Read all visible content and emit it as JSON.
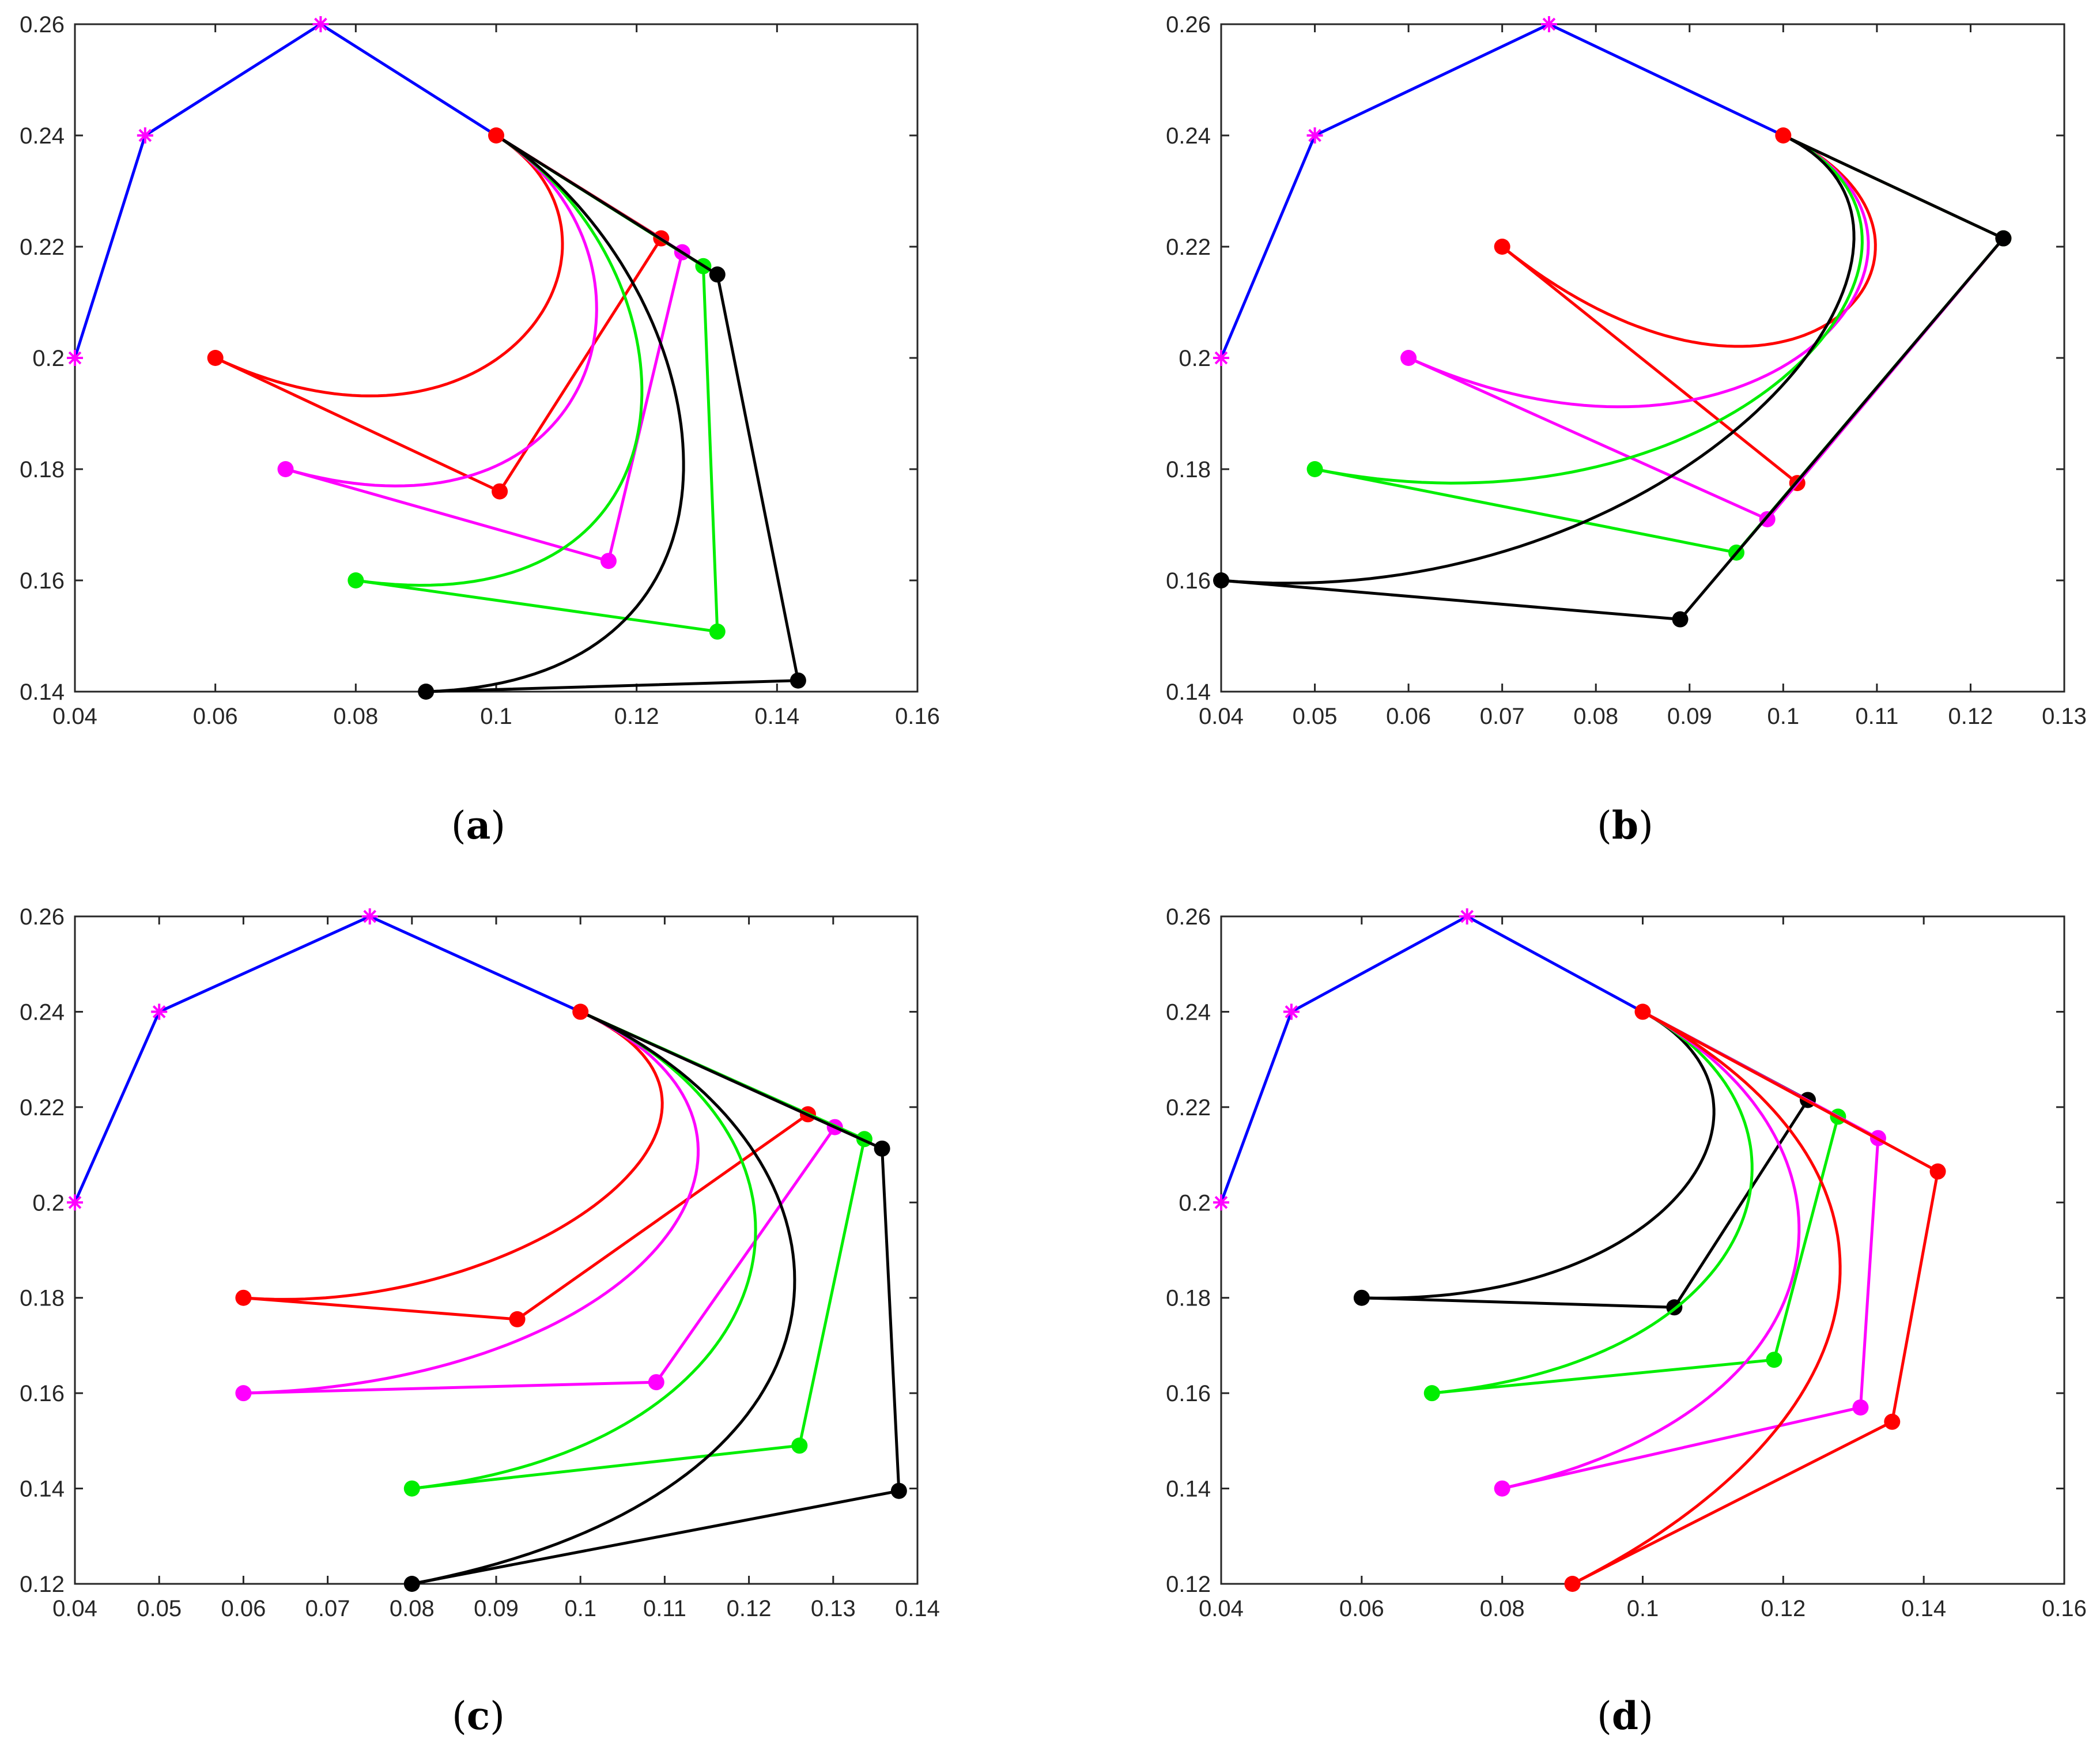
{
  "figure": {
    "type": "multi-panel line/scatter figure (Bezier curves with control polygons)"
  },
  "colors": {
    "blue": "#0000ff",
    "magenta": "#ff00ff",
    "red": "#ff0000",
    "green": "#00ee00",
    "black": "#000000",
    "axis": "#262626"
  },
  "chart_data": [
    {
      "type": "line",
      "label": "(a)",
      "title": "",
      "xlabel": "",
      "ylabel": "",
      "xlim": [
        0.04,
        0.16
      ],
      "ylim": [
        0.14,
        0.26
      ],
      "xticks": [
        0.04,
        0.06,
        0.08,
        0.1,
        0.12,
        0.14,
        0.16
      ],
      "xtick_labels": [
        "0.04",
        "0.06",
        "0.08",
        "0.1",
        "0.12",
        "0.14",
        "0.16"
      ],
      "yticks": [
        0.14,
        0.16,
        0.18,
        0.2,
        0.22,
        0.24,
        0.26
      ],
      "ytick_labels": [
        "0.14",
        "0.16",
        "0.18",
        "0.2",
        "0.22",
        "0.24",
        "0.26"
      ],
      "fixed_polygon": {
        "color": "blue",
        "marker": "asterisk",
        "points": [
          [
            0.04,
            0.2
          ],
          [
            0.05,
            0.24
          ],
          [
            0.075,
            0.26
          ],
          [
            0.1,
            0.24
          ]
        ]
      },
      "series": [
        {
          "name": "red",
          "color": "red",
          "control_points": [
            [
              0.1,
              0.24
            ],
            [
              0.1235,
              0.2215
            ],
            [
              0.1005,
              0.176
            ],
            [
              0.06,
              0.2
            ]
          ]
        },
        {
          "name": "magenta",
          "color": "magenta",
          "control_points": [
            [
              0.1,
              0.24
            ],
            [
              0.1265,
              0.219
            ],
            [
              0.116,
              0.1635
            ],
            [
              0.07,
              0.18
            ]
          ]
        },
        {
          "name": "green",
          "color": "green",
          "control_points": [
            [
              0.1,
              0.24
            ],
            [
              0.1295,
              0.2165
            ],
            [
              0.1315,
              0.1508
            ],
            [
              0.08,
              0.16
            ]
          ]
        },
        {
          "name": "black",
          "color": "black",
          "control_points": [
            [
              0.1,
              0.24
            ],
            [
              0.1315,
              0.215
            ],
            [
              0.143,
              0.142
            ],
            [
              0.09,
              0.14
            ]
          ]
        }
      ]
    },
    {
      "type": "line",
      "label": "(b)",
      "title": "",
      "xlabel": "",
      "ylabel": "",
      "xlim": [
        0.04,
        0.13
      ],
      "ylim": [
        0.14,
        0.26
      ],
      "xticks": [
        0.04,
        0.05,
        0.06,
        0.07,
        0.08,
        0.09,
        0.1,
        0.11,
        0.12,
        0.13
      ],
      "xtick_labels": [
        "0.04",
        "0.05",
        "0.06",
        "0.07",
        "0.08",
        "0.09",
        "0.1",
        "0.11",
        "0.12",
        "0.13"
      ],
      "yticks": [
        0.14,
        0.16,
        0.18,
        0.2,
        0.22,
        0.24,
        0.26
      ],
      "ytick_labels": [
        "0.14",
        "0.16",
        "0.18",
        "0.2",
        "0.22",
        "0.24",
        "0.26"
      ],
      "fixed_polygon": {
        "color": "blue",
        "marker": "asterisk",
        "points": [
          [
            0.04,
            0.2
          ],
          [
            0.05,
            0.24
          ],
          [
            0.075,
            0.26
          ],
          [
            0.1,
            0.24
          ]
        ]
      },
      "series": [
        {
          "name": "red",
          "color": "red",
          "control_points": [
            [
              0.1,
              0.24
            ],
            [
              0.1235,
              0.2215
            ],
            [
              0.1015,
              0.1775
            ],
            [
              0.07,
              0.22
            ]
          ]
        },
        {
          "name": "magenta",
          "color": "magenta",
          "control_points": [
            [
              0.1,
              0.24
            ],
            [
              0.1235,
              0.2215
            ],
            [
              0.0983,
              0.171
            ],
            [
              0.06,
              0.2
            ]
          ]
        },
        {
          "name": "green",
          "color": "green",
          "control_points": [
            [
              0.1,
              0.24
            ],
            [
              0.1235,
              0.2215
            ],
            [
              0.095,
              0.165
            ],
            [
              0.05,
              0.18
            ]
          ]
        },
        {
          "name": "black",
          "color": "black",
          "control_points": [
            [
              0.1,
              0.24
            ],
            [
              0.1235,
              0.2215
            ],
            [
              0.089,
              0.153
            ],
            [
              0.04,
              0.16
            ]
          ]
        }
      ]
    },
    {
      "type": "line",
      "label": "(c)",
      "title": "",
      "xlabel": "",
      "ylabel": "",
      "xlim": [
        0.04,
        0.14
      ],
      "ylim": [
        0.12,
        0.26
      ],
      "xticks": [
        0.04,
        0.05,
        0.06,
        0.07,
        0.08,
        0.09,
        0.1,
        0.11,
        0.12,
        0.13,
        0.14
      ],
      "xtick_labels": [
        "0.04",
        "0.05",
        "0.06",
        "0.07",
        "0.08",
        "0.09",
        "0.1",
        "0.11",
        "0.12",
        "0.13",
        "0.14"
      ],
      "yticks": [
        0.12,
        0.14,
        0.16,
        0.18,
        0.2,
        0.22,
        0.24,
        0.26
      ],
      "ytick_labels": [
        "0.12",
        "0.14",
        "0.16",
        "0.18",
        "0.2",
        "0.22",
        "0.24",
        "0.26"
      ],
      "fixed_polygon": {
        "color": "blue",
        "marker": "asterisk",
        "points": [
          [
            0.04,
            0.2
          ],
          [
            0.05,
            0.24
          ],
          [
            0.075,
            0.26
          ],
          [
            0.1,
            0.24
          ]
        ]
      },
      "series": [
        {
          "name": "red",
          "color": "red",
          "control_points": [
            [
              0.1,
              0.24
            ],
            [
              0.127,
              0.2185
            ],
            [
              0.0925,
              0.1755
            ],
            [
              0.06,
              0.18
            ]
          ]
        },
        {
          "name": "magenta",
          "color": "magenta",
          "control_points": [
            [
              0.1,
              0.24
            ],
            [
              0.1302,
              0.2158
            ],
            [
              0.109,
              0.1623
            ],
            [
              0.06,
              0.16
            ]
          ]
        },
        {
          "name": "green",
          "color": "green",
          "control_points": [
            [
              0.1,
              0.24
            ],
            [
              0.1337,
              0.2133
            ],
            [
              0.126,
              0.149
            ],
            [
              0.08,
              0.14
            ]
          ]
        },
        {
          "name": "black",
          "color": "black",
          "control_points": [
            [
              0.1,
              0.24
            ],
            [
              0.1358,
              0.2113
            ],
            [
              0.1378,
              0.1395
            ],
            [
              0.08,
              0.12
            ]
          ]
        }
      ]
    },
    {
      "type": "line",
      "label": "(d)",
      "title": "",
      "xlabel": "",
      "ylabel": "",
      "xlim": [
        0.04,
        0.16
      ],
      "ylim": [
        0.12,
        0.26
      ],
      "xticks": [
        0.04,
        0.06,
        0.08,
        0.1,
        0.12,
        0.14,
        0.16
      ],
      "xtick_labels": [
        "0.04",
        "0.06",
        "0.08",
        "0.1",
        "0.12",
        "0.14",
        "0.16"
      ],
      "yticks": [
        0.12,
        0.14,
        0.16,
        0.18,
        0.2,
        0.22,
        0.24,
        0.26
      ],
      "ytick_labels": [
        "0.12",
        "0.14",
        "0.16",
        "0.18",
        "0.2",
        "0.22",
        "0.24",
        "0.26"
      ],
      "fixed_polygon": {
        "color": "blue",
        "marker": "asterisk",
        "points": [
          [
            0.04,
            0.2
          ],
          [
            0.05,
            0.24
          ],
          [
            0.075,
            0.26
          ],
          [
            0.1,
            0.24
          ]
        ]
      },
      "series": [
        {
          "name": "black",
          "color": "black",
          "control_points": [
            [
              0.1,
              0.24
            ],
            [
              0.1235,
              0.2215
            ],
            [
              0.1045,
              0.178
            ],
            [
              0.06,
              0.18
            ]
          ]
        },
        {
          "name": "green",
          "color": "green",
          "control_points": [
            [
              0.1,
              0.24
            ],
            [
              0.1278,
              0.218
            ],
            [
              0.1187,
              0.167
            ],
            [
              0.07,
              0.16
            ]
          ]
        },
        {
          "name": "magenta",
          "color": "magenta",
          "control_points": [
            [
              0.1,
              0.24
            ],
            [
              0.1335,
              0.2135
            ],
            [
              0.131,
              0.157
            ],
            [
              0.08,
              0.14
            ]
          ]
        },
        {
          "name": "red",
          "color": "red",
          "control_points": [
            [
              0.1,
              0.24
            ],
            [
              0.142,
              0.2065
            ],
            [
              0.1355,
              0.154
            ],
            [
              0.09,
              0.12
            ]
          ]
        }
      ]
    }
  ]
}
